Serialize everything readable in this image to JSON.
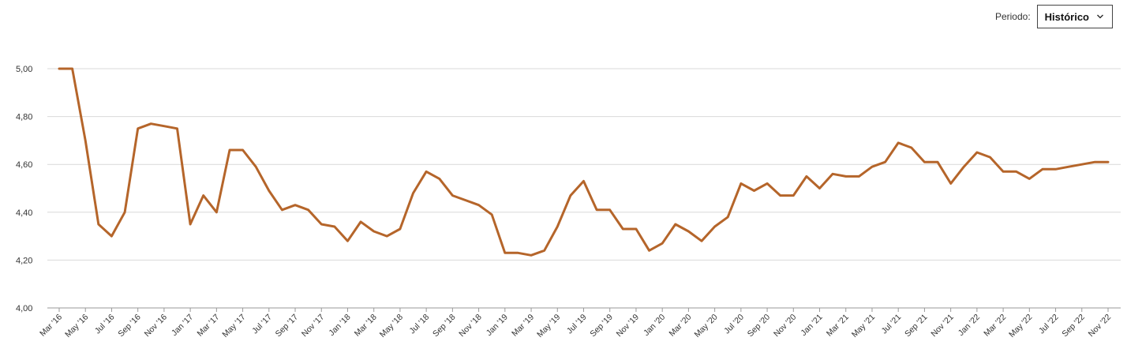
{
  "period": {
    "label": "Periodo:",
    "value": "Histórico",
    "chevron_icon": "chevron-down-icon"
  },
  "colors": {
    "line": "#b5652a",
    "grid": "#d9d9d9",
    "axis": "#999999"
  },
  "chart_data": {
    "type": "line",
    "title": "",
    "xlabel": "",
    "ylabel": "",
    "ylim": [
      4.0,
      5.0
    ],
    "ytick_labels": [
      "4,00",
      "4,20",
      "4,40",
      "4,60",
      "4,80",
      "5,00"
    ],
    "ytick_values": [
      4.0,
      4.2,
      4.4,
      4.6,
      4.8,
      5.0
    ],
    "x_start": "Mar '16",
    "x_end": "Nov '22",
    "xtick_labels": [
      "Mar '16",
      "May '16",
      "Jul '16",
      "Sep '16",
      "Nov '16",
      "Jan '17",
      "Mar '17",
      "May '17",
      "Jul '17",
      "Sep '17",
      "Nov '17",
      "Jan '18",
      "Mar '18",
      "May '18",
      "Jul '18",
      "Sep '18",
      "Nov '18",
      "Jan '19",
      "Mar '19",
      "May '19",
      "Jul '19",
      "Sep '19",
      "Nov '19",
      "Jan '20",
      "Mar '20",
      "May '20",
      "Jul '20",
      "Sep '20",
      "Nov '20",
      "Jan '21",
      "Mar '21",
      "May '21",
      "Jul '21",
      "Sep '21",
      "Nov '21",
      "Jan '22",
      "Mar '22",
      "May '22",
      "Jul '22",
      "Sep '22",
      "Nov '22"
    ],
    "grid": true,
    "legend": "none",
    "series": [
      {
        "values": [
          5.0,
          5.0,
          4.7,
          4.35,
          4.3,
          4.4,
          4.75,
          4.77,
          4.76,
          4.75,
          4.35,
          4.47,
          4.4,
          4.66,
          4.66,
          4.59,
          4.49,
          4.41,
          4.43,
          4.41,
          4.35,
          4.34,
          4.28,
          4.36,
          4.32,
          4.3,
          4.33,
          4.48,
          4.57,
          4.54,
          4.47,
          4.45,
          4.43,
          4.39,
          4.23,
          4.23,
          4.22,
          4.24,
          4.34,
          4.47,
          4.53,
          4.41,
          4.41,
          4.33,
          4.33,
          4.24,
          4.27,
          4.35,
          4.32,
          4.28,
          4.34,
          4.38,
          4.52,
          4.49,
          4.52,
          4.47,
          4.47,
          4.55,
          4.5,
          4.56,
          4.55,
          4.55,
          4.59,
          4.61,
          4.69,
          4.67,
          4.61,
          4.61,
          4.52,
          4.59,
          4.65,
          4.63,
          4.57,
          4.57,
          4.54,
          4.58,
          4.58,
          4.59,
          4.6,
          4.61,
          4.61
        ]
      }
    ]
  }
}
